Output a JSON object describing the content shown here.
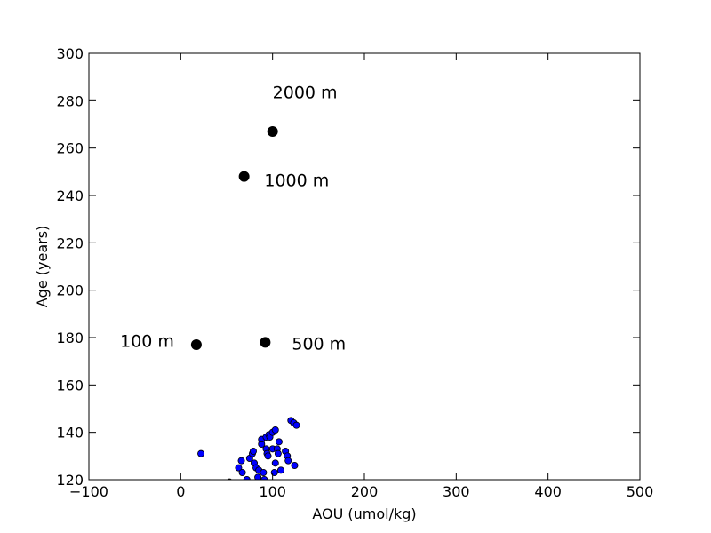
{
  "chart_data": {
    "type": "scatter",
    "xlabel": "AOU (umol/kg)",
    "ylabel": "Age (years)",
    "xlim": [
      -100,
      500
    ],
    "ylim": [
      120,
      300
    ],
    "xticks": [
      "−100",
      "0",
      "100",
      "200",
      "300",
      "400",
      "500"
    ],
    "yticks": [
      "120",
      "140",
      "160",
      "180",
      "200",
      "220",
      "240",
      "260",
      "280",
      "300"
    ],
    "grid": false,
    "colors": {
      "small_points": "#0000ff",
      "large_points": "#000000",
      "edge": "#000000"
    },
    "series": [
      {
        "points": [
          [
            22,
            131
          ],
          [
            63,
            125
          ],
          [
            66,
            128
          ],
          [
            67,
            123
          ],
          [
            72,
            120
          ],
          [
            75,
            129
          ],
          [
            78,
            131
          ],
          [
            80,
            127
          ],
          [
            79,
            132
          ],
          [
            82,
            125
          ],
          [
            84,
            121
          ],
          [
            85,
            124
          ],
          [
            88,
            137
          ],
          [
            88,
            135
          ],
          [
            90,
            123
          ],
          [
            91,
            120
          ],
          [
            93,
            138
          ],
          [
            93,
            133
          ],
          [
            94,
            131
          ],
          [
            95,
            130
          ],
          [
            96,
            139
          ],
          [
            97,
            138
          ],
          [
            100,
            133
          ],
          [
            100,
            140
          ],
          [
            103,
            141
          ],
          [
            103,
            127
          ],
          [
            102,
            123
          ],
          [
            105,
            133
          ],
          [
            106,
            131
          ],
          [
            107,
            136
          ],
          [
            109,
            124
          ],
          [
            114,
            132
          ],
          [
            116,
            130
          ],
          [
            117,
            128
          ],
          [
            120,
            145
          ],
          [
            123,
            144
          ],
          [
            124,
            126
          ],
          [
            126,
            143
          ],
          [
            53,
            119
          ]
        ]
      },
      {
        "points": [
          [
            17,
            177
          ],
          [
            92,
            178
          ],
          [
            69,
            248
          ],
          [
            100,
            267
          ]
        ]
      }
    ],
    "annotations": [
      {
        "text": "100 m",
        "x": -66,
        "y": 176
      },
      {
        "text": "500 m",
        "x": 121,
        "y": 175
      },
      {
        "text": "1000 m",
        "x": 91,
        "y": 244
      },
      {
        "text": "2000 m",
        "x": 100,
        "y": 281
      }
    ]
  }
}
